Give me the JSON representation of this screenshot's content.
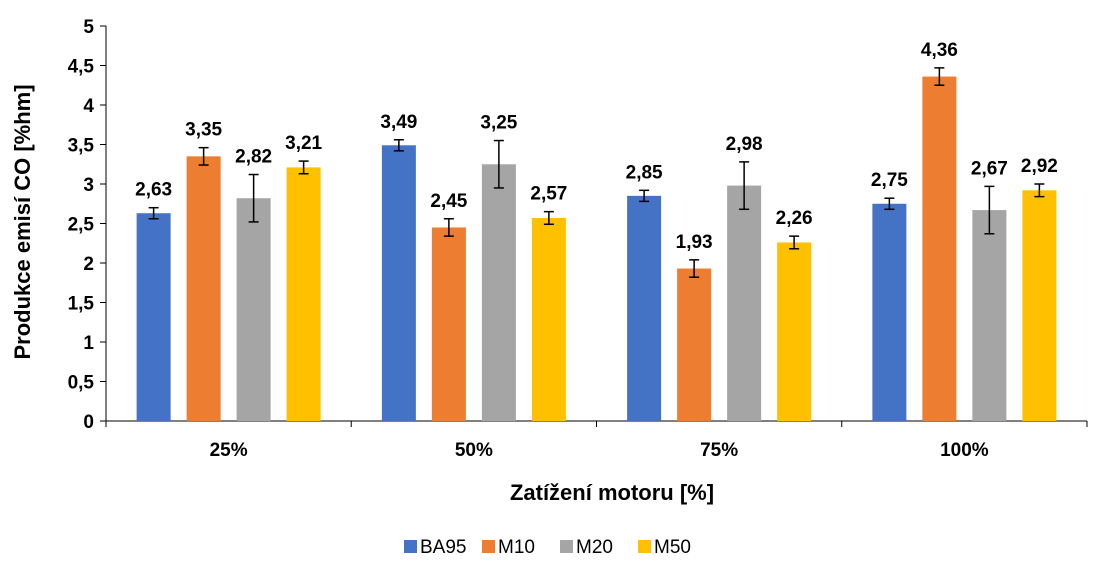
{
  "chart_data": {
    "type": "bar",
    "categories": [
      "25%",
      "50%",
      "75%",
      "100%"
    ],
    "series": [
      {
        "name": "BA95",
        "color": "#4472C4",
        "values": [
          2.63,
          3.49,
          2.85,
          2.75
        ],
        "labels": [
          "2,63",
          "3,49",
          "2,85",
          "2,75"
        ],
        "errors": [
          0.07,
          0.07,
          0.07,
          0.07
        ]
      },
      {
        "name": "M10",
        "color": "#ED7D31",
        "values": [
          3.35,
          2.45,
          1.93,
          4.36
        ],
        "labels": [
          "3,35",
          "2,45",
          "1,93",
          "4,36"
        ],
        "errors": [
          0.11,
          0.11,
          0.11,
          0.11
        ]
      },
      {
        "name": "M20",
        "color": "#A5A5A5",
        "values": [
          2.82,
          3.25,
          2.98,
          2.67
        ],
        "labels": [
          "2,82",
          "3,25",
          "2,98",
          "2,67"
        ],
        "errors": [
          0.3,
          0.3,
          0.3,
          0.3
        ]
      },
      {
        "name": "M50",
        "color": "#FFC000",
        "values": [
          3.21,
          2.57,
          2.26,
          2.92
        ],
        "labels": [
          "3,21",
          "2,57",
          "2,26",
          "2,92"
        ],
        "errors": [
          0.08,
          0.08,
          0.08,
          0.08
        ]
      }
    ],
    "title": "",
    "xlabel": "Zatížení motoru [%]",
    "ylabel": "Produkce emisí CO [%hm]",
    "ylim": [
      0,
      5
    ],
    "yticks": [
      0,
      0.5,
      1,
      1.5,
      2,
      2.5,
      3,
      3.5,
      4,
      4.5,
      5
    ],
    "ytick_labels": [
      "0",
      "0,5",
      "1",
      "1,5",
      "2",
      "2,5",
      "3",
      "3,5",
      "4",
      "4,5",
      "5"
    ],
    "grid": false,
    "legend_position": "bottom"
  }
}
